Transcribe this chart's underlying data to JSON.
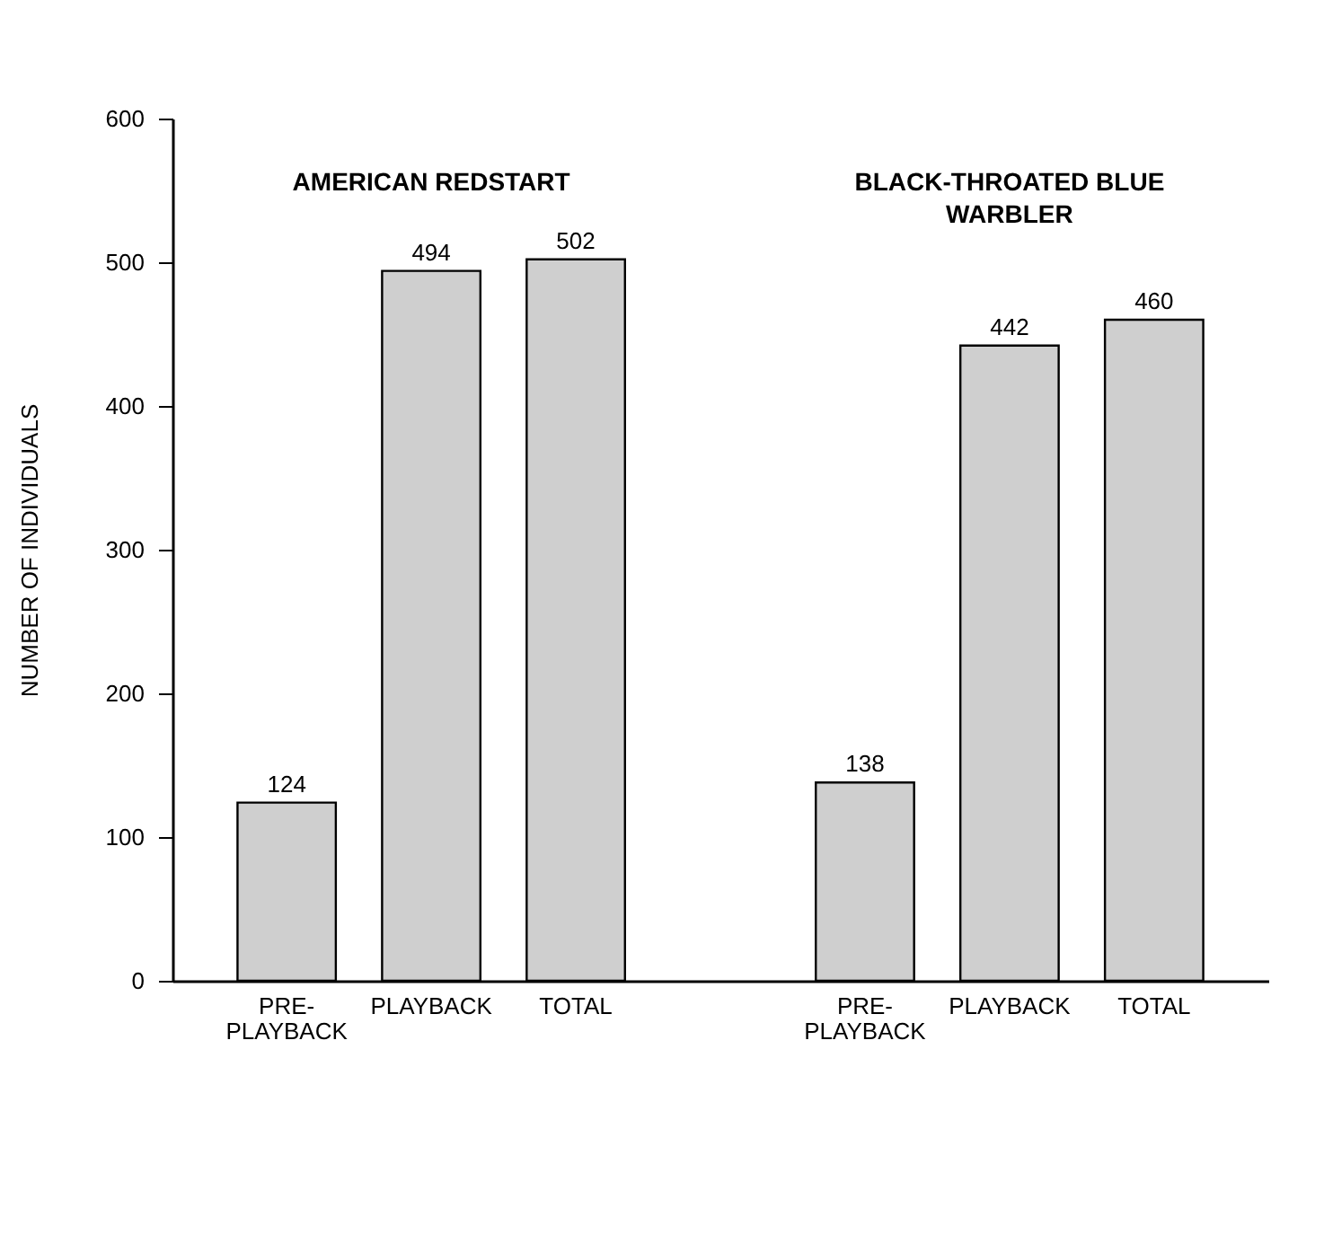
{
  "chart_data": {
    "type": "bar",
    "ylabel": "NUMBER OF INDIVIDUALS",
    "categories": [
      "PRE-PLAYBACK",
      "PLAYBACK",
      "TOTAL",
      null,
      "PRE-PLAYBACK",
      "PLAYBACK",
      "TOTAL"
    ],
    "values": [
      124,
      494,
      502,
      null,
      138,
      442,
      460
    ],
    "color": "#cfcfcf",
    "ylim": [
      0,
      600
    ],
    "yticks": [
      0,
      100,
      200,
      300,
      400,
      500,
      600
    ],
    "data_labels": true,
    "grid": false,
    "annotations": [
      "AMERICAN REDSTART",
      "BLACK-THROATED BLUE WARBLER"
    ]
  }
}
